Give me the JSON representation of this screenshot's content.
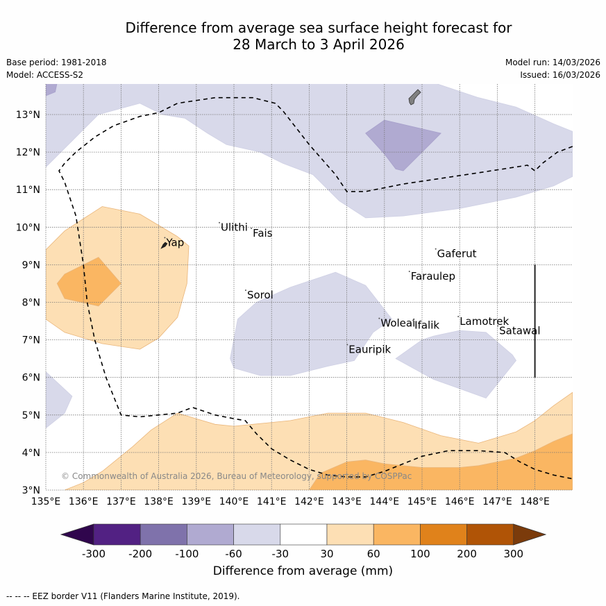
{
  "header": {
    "title_line1": "Difference from average sea surface height forecast for",
    "title_line2": "28 March to 3 April 2026",
    "base_period": "Base period: 1981-2018",
    "model": "Model: ACCESS-S2",
    "model_run": "Model run: 14/03/2026",
    "issued": "Issued: 16/03/2026"
  },
  "map": {
    "lon_range": [
      135,
      149
    ],
    "lat_range": [
      3,
      13.8
    ],
    "lon_ticks": [
      "135°E",
      "136°E",
      "137°E",
      "138°E",
      "139°E",
      "140°E",
      "141°E",
      "142°E",
      "143°E",
      "144°E",
      "145°E",
      "146°E",
      "147°E",
      "148°E"
    ],
    "lat_ticks": [
      "3°N",
      "4°N",
      "5°N",
      "6°N",
      "7°N",
      "8°N",
      "9°N",
      "10°N",
      "11°N",
      "12°N",
      "13°N"
    ],
    "copyright": "© Commonwealth of Australia 2026, Bureau of Meteorology, supported by COSPPac",
    "places": [
      {
        "name": "Yap",
        "lon": 138.2,
        "lat": 9.5
      },
      {
        "name": "Ulithi",
        "lon": 139.65,
        "lat": 9.9
      },
      {
        "name": "Fais",
        "lon": 140.5,
        "lat": 9.75
      },
      {
        "name": "Sorol",
        "lon": 140.35,
        "lat": 8.1
      },
      {
        "name": "Gaferut",
        "lon": 145.4,
        "lat": 9.2
      },
      {
        "name": "Faraulep",
        "lon": 144.7,
        "lat": 8.6
      },
      {
        "name": "Woleai",
        "lon": 143.9,
        "lat": 7.35
      },
      {
        "name": "Ifalik",
        "lon": 144.8,
        "lat": 7.3
      },
      {
        "name": "Lamotrek",
        "lon": 146.0,
        "lat": 7.4
      },
      {
        "name": "Satawal",
        "lon": 147.05,
        "lat": 7.15
      },
      {
        "name": "Eauripik",
        "lon": 143.05,
        "lat": 6.65
      }
    ],
    "contours": [
      {
        "category": "-60 to -30",
        "color": "#d8d9ea",
        "points": [
          [
            135,
            11.6
          ],
          [
            135.5,
            12.1
          ],
          [
            136.4,
            13.0
          ],
          [
            137.5,
            13.3
          ],
          [
            138.1,
            13.0
          ],
          [
            138.7,
            12.9
          ],
          [
            139.3,
            12.5
          ],
          [
            139.8,
            12.2
          ],
          [
            140.7,
            12.0
          ],
          [
            141.3,
            11.7
          ],
          [
            142.1,
            11.4
          ],
          [
            142.8,
            10.7
          ],
          [
            143.5,
            10.25
          ],
          [
            144.5,
            10.3
          ],
          [
            146,
            10.5
          ],
          [
            147.5,
            10.8
          ],
          [
            148.5,
            11.1
          ],
          [
            149,
            11.35
          ],
          [
            149,
            12.55
          ],
          [
            148.5,
            12.75
          ],
          [
            147.5,
            13.2
          ],
          [
            146.5,
            13.45
          ],
          [
            145.3,
            13.85
          ],
          [
            135,
            13.85
          ]
        ]
      },
      {
        "category": "-100 to -60",
        "color": "#b0aad1",
        "points": [
          [
            143.5,
            12.5
          ],
          [
            144.0,
            12.85
          ],
          [
            145.5,
            12.5
          ],
          [
            145.0,
            12.0
          ],
          [
            144.5,
            11.5
          ],
          [
            144.3,
            11.55
          ],
          [
            144.0,
            11.95
          ]
        ]
      },
      {
        "category": "-100 to -60",
        "color": "#b0aad1",
        "points": [
          [
            135,
            13.5
          ],
          [
            135,
            13.85
          ],
          [
            135.3,
            13.85
          ],
          [
            135.25,
            13.6
          ]
        ]
      },
      {
        "category": "-60 to -30",
        "color": "#d8d9ea",
        "points": [
          [
            140.1,
            7.55
          ],
          [
            140.6,
            8.0
          ],
          [
            141.5,
            8.4
          ],
          [
            142.7,
            8.8
          ],
          [
            143.5,
            8.45
          ],
          [
            144.2,
            7.55
          ],
          [
            143.7,
            7.2
          ],
          [
            143.2,
            6.45
          ],
          [
            142.5,
            6.3
          ],
          [
            141.5,
            6.05
          ],
          [
            140.7,
            6.05
          ],
          [
            140.0,
            6.25
          ],
          [
            139.9,
            6.5
          ]
        ]
      },
      {
        "category": "-60 to -30",
        "color": "#d8d9ea",
        "points": [
          [
            144.3,
            6.5
          ],
          [
            145.0,
            7.0
          ],
          [
            145.3,
            7.1
          ],
          [
            146.0,
            7.25
          ],
          [
            146.7,
            7.2
          ],
          [
            147.4,
            6.6
          ],
          [
            147.5,
            6.45
          ],
          [
            146.7,
            5.45
          ],
          [
            146.0,
            5.7
          ],
          [
            145.3,
            5.95
          ]
        ]
      },
      {
        "category": "-60 to -30",
        "color": "#d8d9ea",
        "points": [
          [
            135,
            6.15
          ],
          [
            135.7,
            5.5
          ],
          [
            135.5,
            5.05
          ],
          [
            135,
            4.65
          ]
        ]
      },
      {
        "category": "30 to 60",
        "color": "#fddfb4",
        "points": [
          [
            135,
            9.4
          ],
          [
            135.5,
            9.9
          ],
          [
            136.5,
            10.55
          ],
          [
            137.5,
            10.35
          ],
          [
            138.5,
            9.75
          ],
          [
            138.8,
            9.5
          ],
          [
            138.75,
            8.5
          ],
          [
            138.5,
            7.6
          ],
          [
            138.0,
            7.05
          ],
          [
            137.5,
            6.75
          ],
          [
            136.5,
            6.9
          ],
          [
            135.5,
            7.2
          ],
          [
            135,
            7.55
          ]
        ]
      },
      {
        "category": "60 to 100",
        "color": "#fab662",
        "points": [
          [
            135.3,
            8.5
          ],
          [
            135.5,
            8.75
          ],
          [
            136.4,
            9.2
          ],
          [
            137.0,
            8.5
          ],
          [
            136.4,
            7.9
          ],
          [
            135.5,
            8.1
          ]
        ]
      },
      {
        "category": "30 to 60",
        "color": "#fddfb4",
        "points": [
          [
            135.5,
            3
          ],
          [
            136,
            3.2
          ],
          [
            136.5,
            3.5
          ],
          [
            137.3,
            4.15
          ],
          [
            137.8,
            4.6
          ],
          [
            138.5,
            5.05
          ],
          [
            139.0,
            4.9
          ],
          [
            139.5,
            4.75
          ],
          [
            140.0,
            4.7
          ],
          [
            140.5,
            4.75
          ],
          [
            141.0,
            4.8
          ],
          [
            141.5,
            4.85
          ],
          [
            142.0,
            4.95
          ],
          [
            142.5,
            5.05
          ],
          [
            143.0,
            5.05
          ],
          [
            143.5,
            5.05
          ],
          [
            144.5,
            4.8
          ],
          [
            145.5,
            4.45
          ],
          [
            146.5,
            4.25
          ],
          [
            147.5,
            4.55
          ],
          [
            148.0,
            4.85
          ],
          [
            148.5,
            5.25
          ],
          [
            149,
            5.6
          ],
          [
            149,
            3
          ]
        ]
      },
      {
        "category": "60 to 100",
        "color": "#fab662",
        "points": [
          [
            142.0,
            3
          ],
          [
            142.3,
            3.45
          ],
          [
            143.0,
            3.75
          ],
          [
            143.5,
            3.8
          ],
          [
            144.0,
            3.7
          ],
          [
            145.0,
            3.6
          ],
          [
            146.0,
            3.6
          ],
          [
            146.5,
            3.65
          ],
          [
            147.5,
            3.85
          ],
          [
            148.0,
            4.05
          ],
          [
            148.5,
            4.3
          ],
          [
            149,
            4.5
          ],
          [
            149,
            3
          ]
        ]
      }
    ],
    "eez_border": [
      [
        149,
        12.15
      ],
      [
        148.6,
        12.0
      ],
      [
        148.2,
        11.7
      ],
      [
        148.0,
        11.5
      ],
      [
        147.8,
        11.65
      ],
      [
        146.5,
        11.45
      ],
      [
        145.5,
        11.3
      ],
      [
        144.5,
        11.15
      ],
      [
        143.5,
        10.95
      ],
      [
        143.0,
        10.95
      ],
      [
        142.7,
        11.4
      ],
      [
        142.0,
        12.2
      ],
      [
        141.3,
        13.1
      ],
      [
        141.1,
        13.3
      ],
      [
        140.5,
        13.45
      ],
      [
        139.5,
        13.45
      ],
      [
        138.5,
        13.3
      ],
      [
        138.0,
        13.05
      ],
      [
        137.5,
        12.95
      ],
      [
        136.8,
        12.7
      ],
      [
        136.3,
        12.4
      ],
      [
        135.8,
        12.0
      ],
      [
        135.5,
        11.7
      ],
      [
        135.35,
        11.5
      ],
      [
        135.5,
        11.2
      ],
      [
        135.8,
        10.3
      ],
      [
        136.0,
        9.0
      ],
      [
        136.1,
        8.0
      ],
      [
        136.3,
        7.0
      ],
      [
        136.6,
        6.0
      ],
      [
        137.0,
        5.0
      ],
      [
        137.5,
        4.95
      ],
      [
        138.5,
        5.05
      ],
      [
        138.9,
        5.2
      ],
      [
        139.5,
        5.0
      ],
      [
        140.0,
        4.9
      ],
      [
        140.3,
        4.85
      ],
      [
        140.6,
        4.5
      ],
      [
        141.0,
        4.1
      ],
      [
        141.5,
        3.8
      ],
      [
        142.0,
        3.55
      ],
      [
        142.5,
        3.4
      ],
      [
        143.0,
        3.35
      ],
      [
        143.5,
        3.35
      ],
      [
        144.0,
        3.5
      ],
      [
        144.5,
        3.7
      ],
      [
        145.0,
        3.9
      ],
      [
        145.7,
        4.05
      ],
      [
        146.5,
        4.05
      ],
      [
        147.2,
        4.0
      ],
      [
        147.6,
        3.75
      ],
      [
        148.0,
        3.55
      ],
      [
        148.5,
        3.4
      ],
      [
        149,
        3.3
      ]
    ],
    "boundary_line": [
      [
        148,
        9
      ],
      [
        148,
        6
      ]
    ]
  },
  "colorbar": {
    "label": "Difference from average (mm)",
    "ticks": [
      "-300",
      "-200",
      "-100",
      "-60",
      "-30",
      "30",
      "60",
      "100",
      "200",
      "300"
    ],
    "extend_low_color": "#30064d",
    "extend_high_color": "#7b3b0b",
    "colors": [
      "#522183",
      "#7f72ab",
      "#b0aad1",
      "#d8d9ea",
      "#ffffff",
      "#fddfb4",
      "#fab662",
      "#e0821b",
      "#b05406"
    ]
  },
  "footer": {
    "legend_text": "--  --  -- EEZ border V11 (Flanders Marine Institute, 2019)."
  }
}
